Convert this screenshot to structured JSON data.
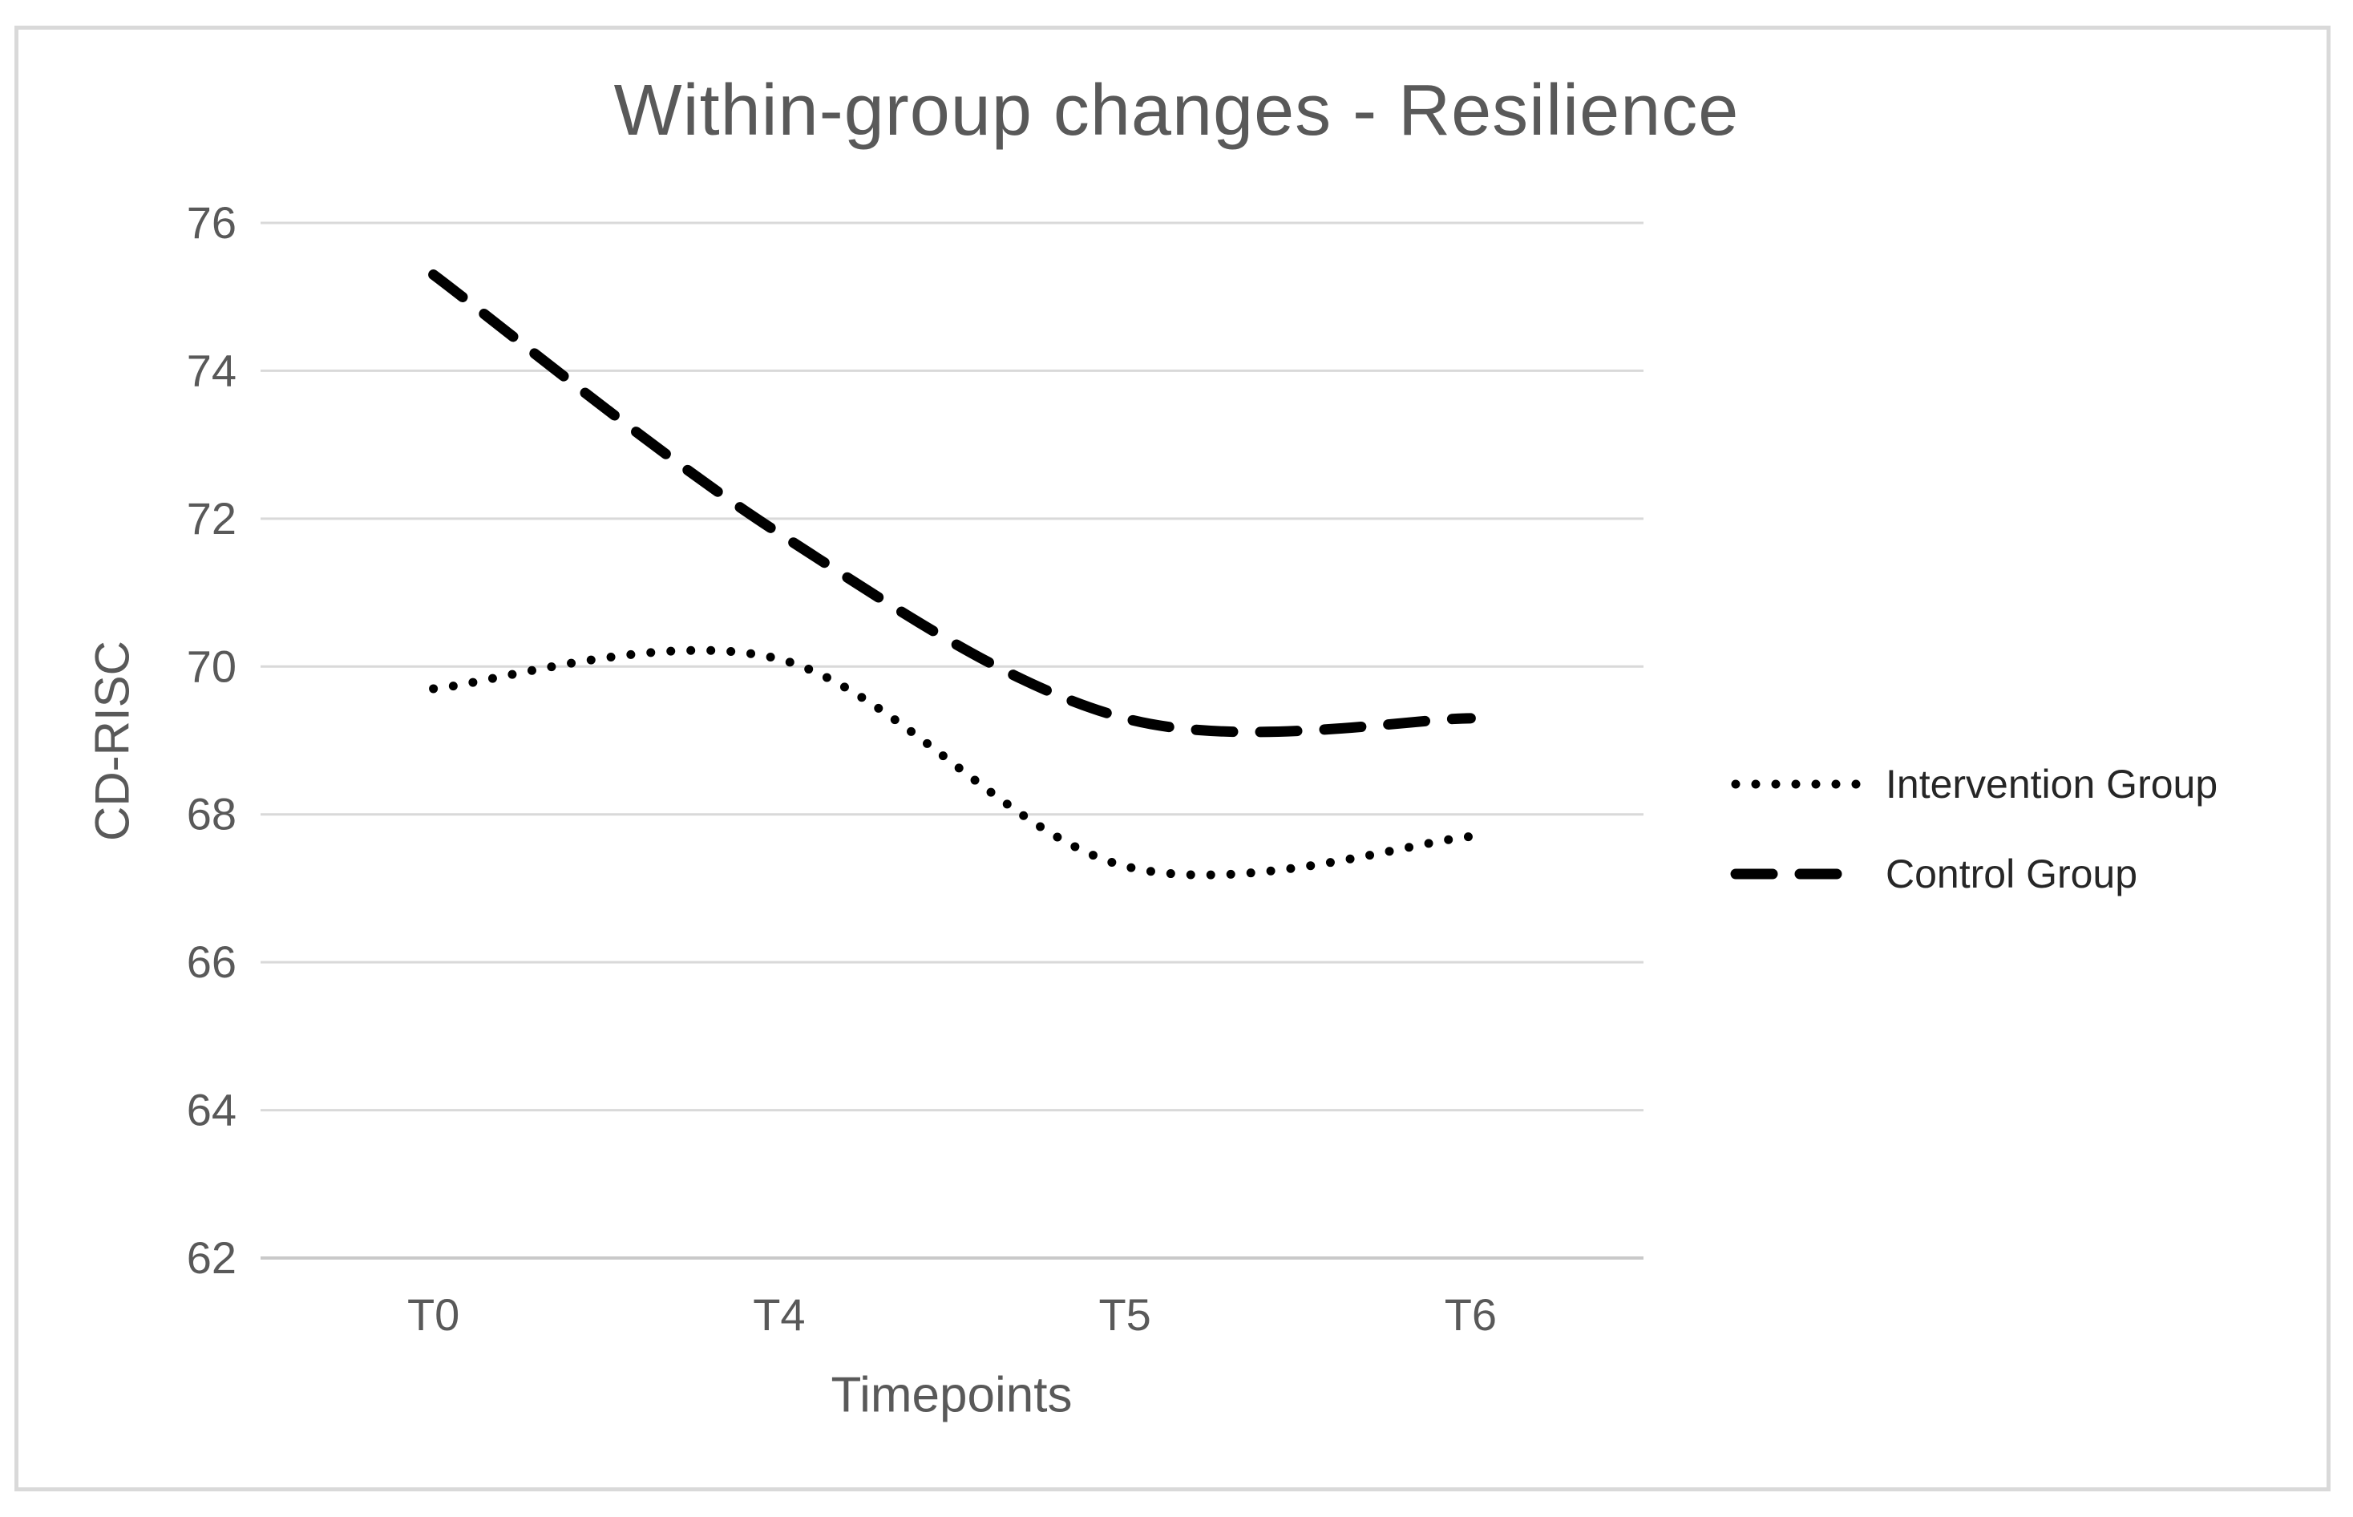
{
  "chart_data": {
    "type": "line",
    "title": "Within-group changes - Resilience",
    "xlabel": "Timepoints",
    "ylabel": "CD-RISC",
    "categories": [
      "T0",
      "T4",
      "T5",
      "T6"
    ],
    "series": [
      {
        "name": "Intervention Group",
        "style": "dotted",
        "values": [
          69.7,
          70.1,
          67.3,
          67.7
        ]
      },
      {
        "name": "Control Group",
        "style": "dashed",
        "values": [
          75.3,
          71.8,
          69.3,
          69.3
        ]
      }
    ],
    "ylim": [
      62,
      76
    ],
    "yticks": [
      62,
      64,
      66,
      68,
      70,
      72,
      74,
      76
    ],
    "grid": true,
    "legend_position": "right",
    "colors": {
      "series": "#000000",
      "grid": "#d9d9d9",
      "axis": "#c9c9c9",
      "text": "#595959",
      "legend_text": "#262626",
      "border": "#d9d9d9",
      "background": "#ffffff"
    }
  }
}
